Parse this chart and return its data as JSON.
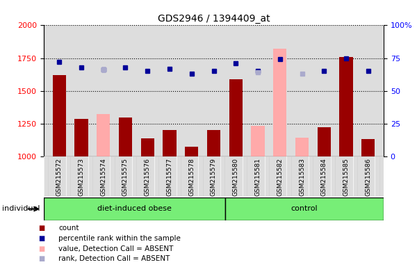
{
  "title": "GDS2946 / 1394409_at",
  "samples": [
    "GSM215572",
    "GSM215573",
    "GSM215574",
    "GSM215575",
    "GSM215576",
    "GSM215577",
    "GSM215578",
    "GSM215579",
    "GSM215580",
    "GSM215581",
    "GSM215582",
    "GSM215583",
    "GSM215584",
    "GSM215585",
    "GSM215586"
  ],
  "count_values": [
    1620,
    1285,
    null,
    1295,
    1135,
    1200,
    1075,
    1200,
    1590,
    null,
    null,
    null,
    1220,
    1760,
    1130
  ],
  "absent_bar_values": [
    null,
    null,
    1320,
    null,
    null,
    null,
    null,
    null,
    null,
    1230,
    1820,
    1140,
    null,
    null,
    null
  ],
  "rank_values": [
    72,
    68,
    66,
    68,
    65,
    67,
    63,
    65,
    71,
    65,
    74,
    null,
    65,
    75,
    65
  ],
  "absent_rank_values": [
    null,
    null,
    66,
    null,
    null,
    null,
    null,
    null,
    null,
    64,
    null,
    63,
    null,
    null,
    null
  ],
  "ylim_left": [
    1000,
    2000
  ],
  "ylim_right": [
    0,
    100
  ],
  "yticks_left": [
    1000,
    1250,
    1500,
    1750,
    2000
  ],
  "yticks_right": [
    0,
    25,
    50,
    75,
    100
  ],
  "bar_color": "#990000",
  "absent_bar_color": "#ffaaaa",
  "rank_color": "#000099",
  "absent_rank_color": "#aaaacc",
  "chart_bg_color": "#dddddd",
  "plot_bg_color": "#ffffff",
  "green_color": "#77ee77",
  "group_diet_label": "diet-induced obese",
  "group_control_label": "control",
  "individual_label": "individual",
  "diet_count": 8,
  "control_count": 7,
  "legend_items": [
    {
      "color": "#990000",
      "marker": "s",
      "label": "count"
    },
    {
      "color": "#000099",
      "marker": "s",
      "label": "percentile rank within the sample"
    },
    {
      "color": "#ffaaaa",
      "marker": "s",
      "label": "value, Detection Call = ABSENT"
    },
    {
      "color": "#aaaacc",
      "marker": "s",
      "label": "rank, Detection Call = ABSENT"
    }
  ]
}
